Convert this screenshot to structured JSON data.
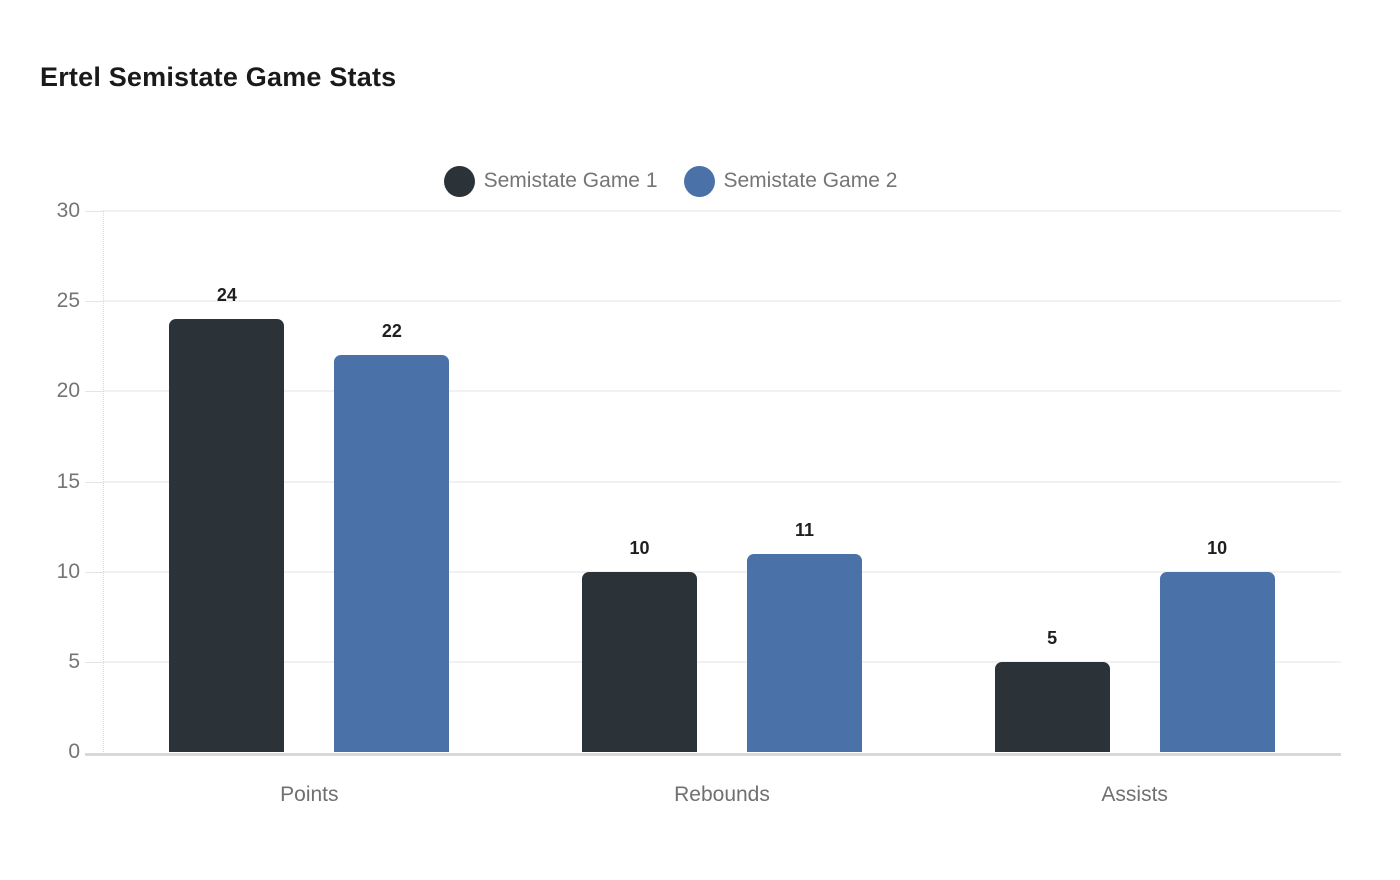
{
  "title": "Ertel Semistate Game Stats",
  "colors": {
    "background": "#ffffff",
    "series1": "#2b3339",
    "series2": "#4b72a8",
    "gridline": "#f1f1f1",
    "baseline": "#d8d8de",
    "tick_text": "#757575",
    "category_text": "#707070",
    "value_text": "#1f1f1f",
    "title_text": "#1a1a1a",
    "legend_text": "#757575"
  },
  "legend": {
    "items": [
      {
        "label": "Semistate Game 1",
        "color": "#2b3339"
      },
      {
        "label": "Semistate Game 2",
        "color": "#4b72a8"
      }
    ]
  },
  "chart_data": {
    "type": "bar",
    "title": "Ertel Semistate Game Stats",
    "categories": [
      "Points",
      "Rebounds",
      "Assists"
    ],
    "series": [
      {
        "name": "Semistate Game 1",
        "color": "#2b3339",
        "values": [
          24,
          10,
          5
        ]
      },
      {
        "name": "Semistate Game 2",
        "color": "#4b72a8",
        "values": [
          22,
          11,
          10
        ]
      }
    ],
    "xlabel": "",
    "ylabel": "",
    "ylim": [
      0,
      30
    ],
    "yticks": [
      0,
      5,
      10,
      15,
      20,
      25,
      30
    ],
    "grid": true,
    "legend_position": "top",
    "value_labels": true
  }
}
